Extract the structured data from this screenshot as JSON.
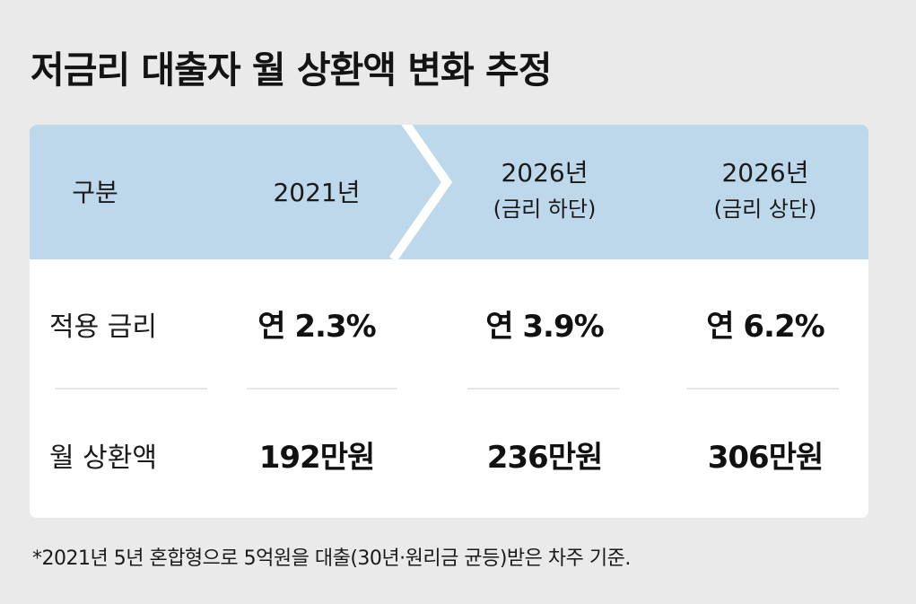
{
  "title": "저금리 대출자 월 상환액 변화 추정",
  "colors": {
    "header_bg": "#bcd8ea",
    "card_bg": "#ffffff",
    "page_bg": "#eaeaea"
  },
  "table": {
    "header": {
      "label": "구분",
      "col1": {
        "line1": "2021년",
        "line2": ""
      },
      "col2": {
        "line1": "2026년",
        "line2": "(금리 하단)"
      },
      "col3": {
        "line1": "2026년",
        "line2": "(금리 상단)"
      }
    },
    "rows": [
      {
        "label": "적용 금리",
        "values": [
          "연 2.3%",
          "연 3.9%",
          "연 6.2%"
        ]
      },
      {
        "label": "월 상환액",
        "values": [
          "192만원",
          "236만원",
          "306만원"
        ]
      }
    ]
  },
  "footnote": "*2021년 5년 혼합형으로 5억원을 대출(30년·원리금 균등)받은 차주 기준."
}
